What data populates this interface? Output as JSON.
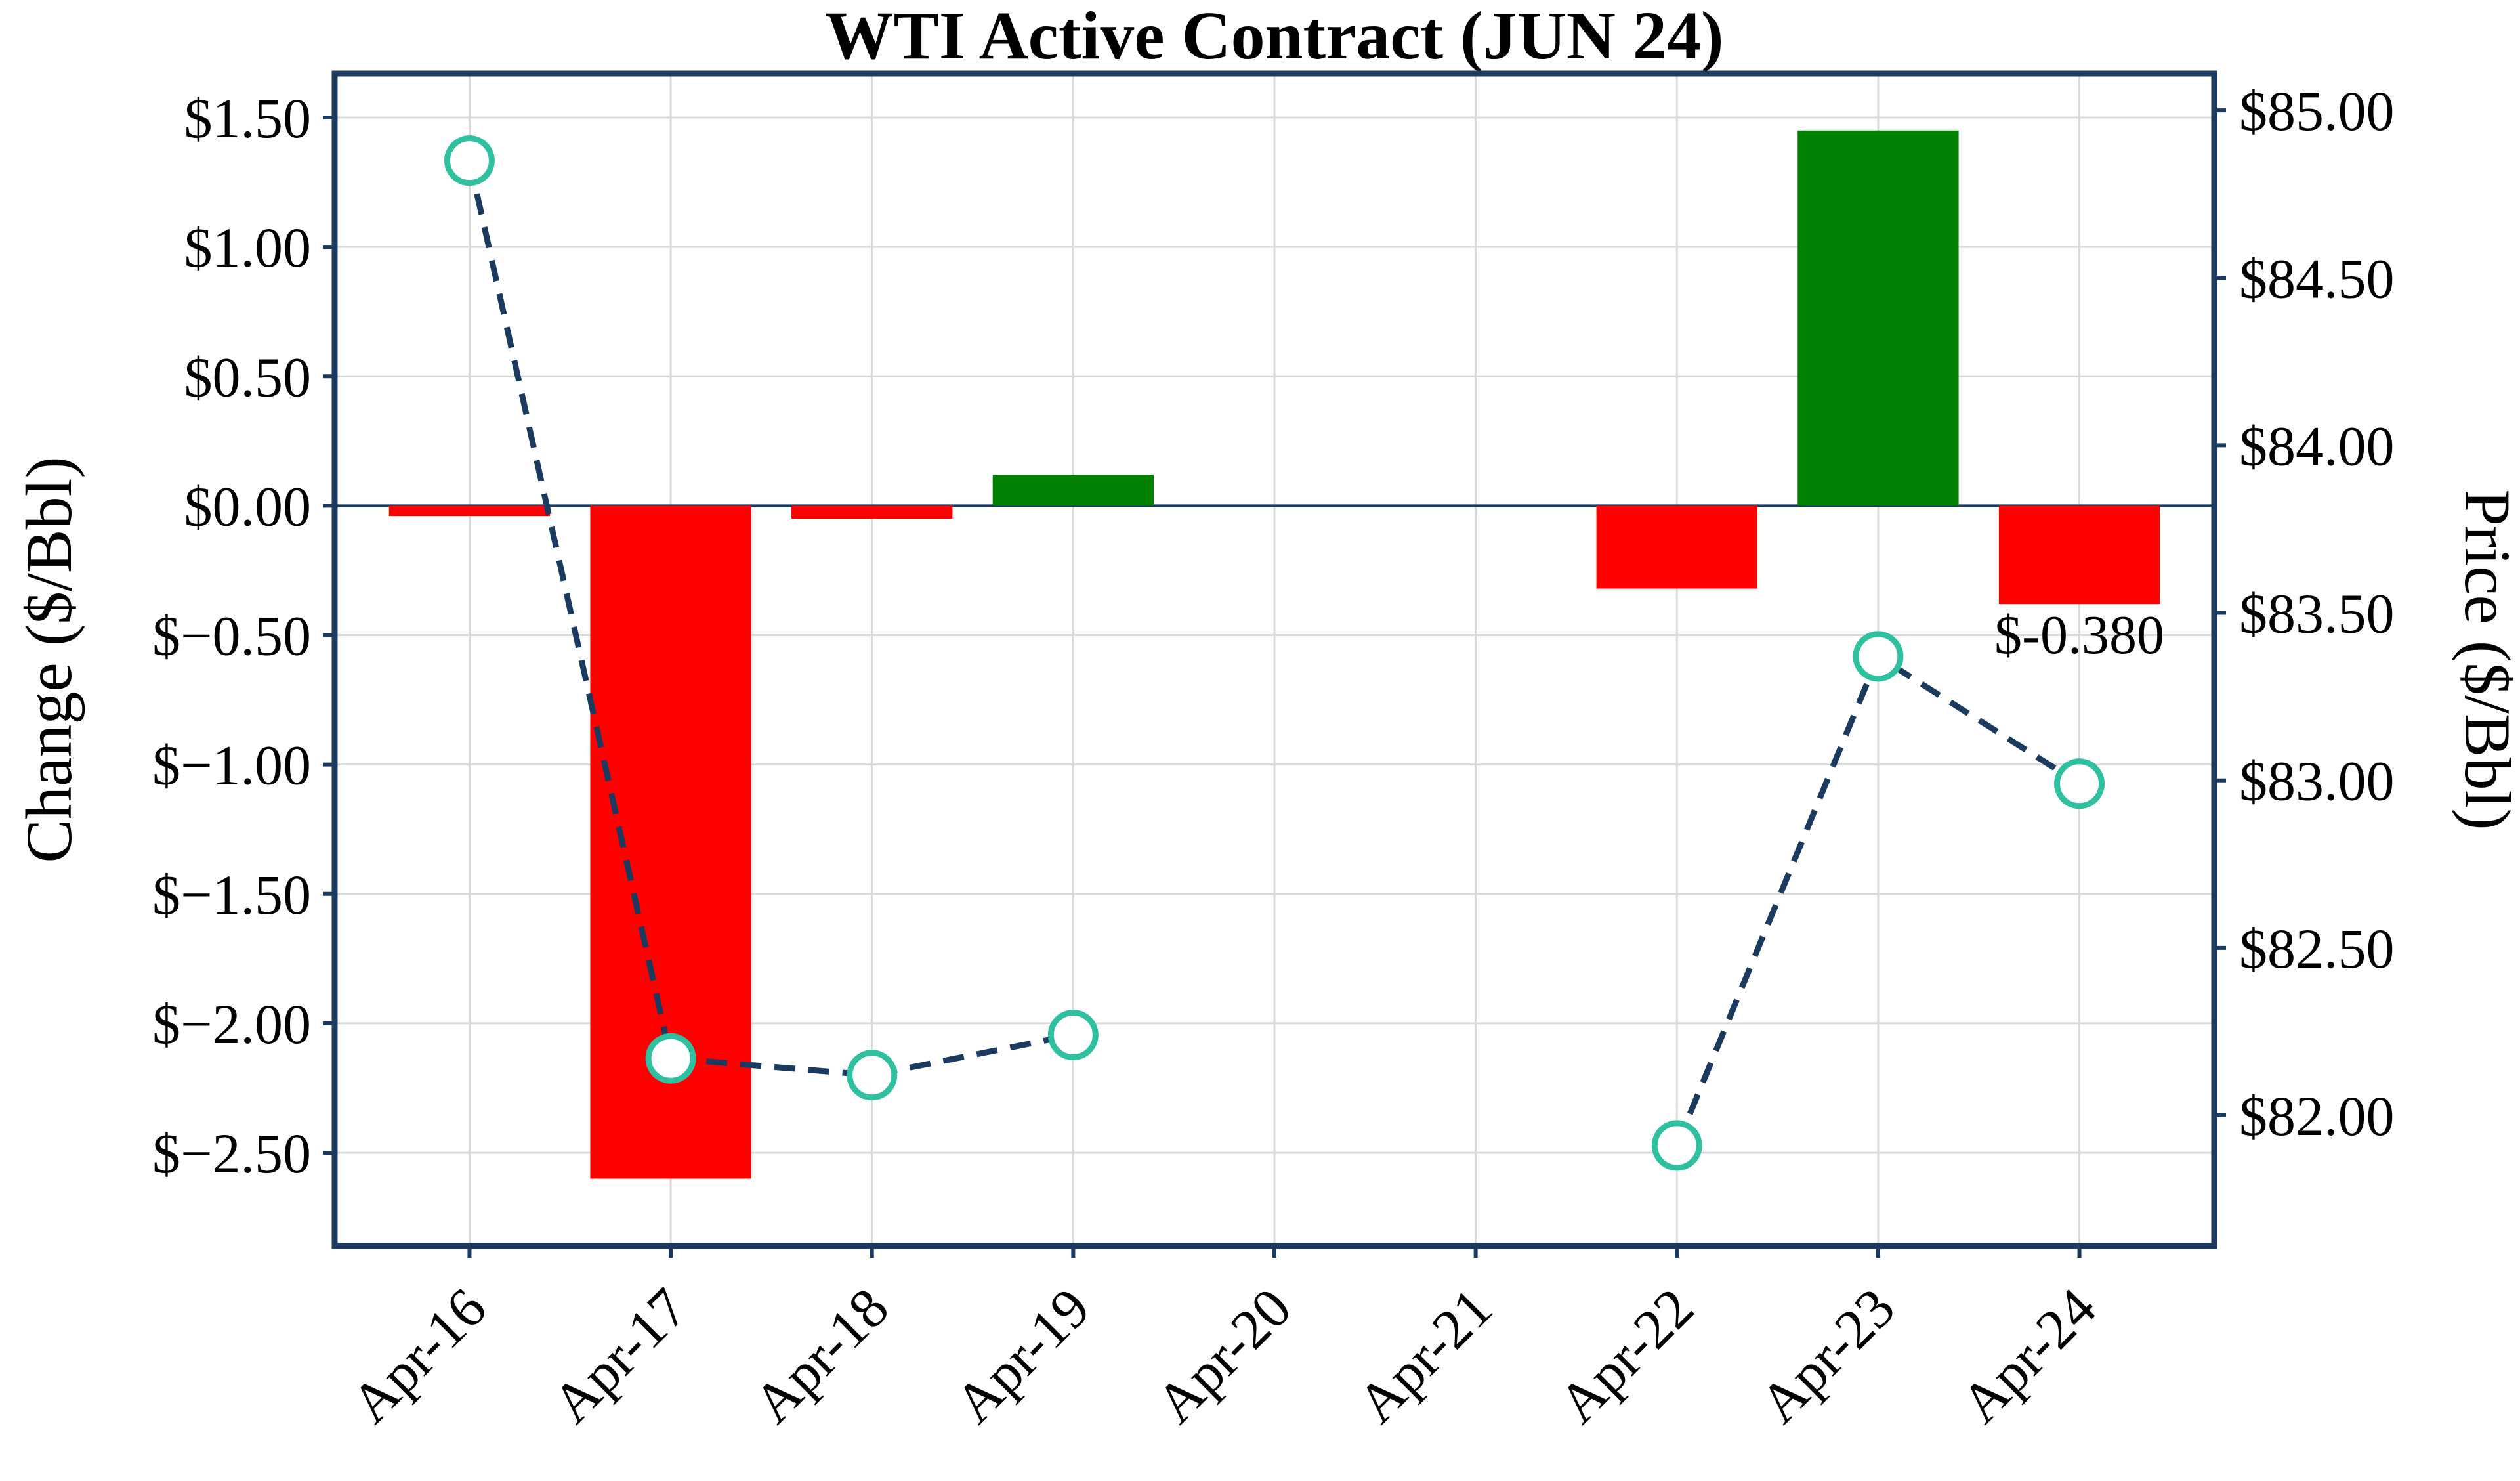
{
  "chart_data": {
    "type": "bar",
    "title": "WTI Active Contract (JUN 24)",
    "left_axis": {
      "label": "Change ($/Bbl)",
      "ticks": [
        1.5,
        1.0,
        0.5,
        0.0,
        -0.5,
        -1.0,
        -1.5,
        -2.0,
        -2.5
      ],
      "tick_labels": [
        "$1.50",
        "$1.00",
        "$0.50",
        "$0.00",
        "$−0.50",
        "$−1.00",
        "$−1.50",
        "$−2.00",
        "$−2.50"
      ],
      "ylim": [
        -2.86,
        1.67
      ]
    },
    "right_axis": {
      "label": "Price ($/Bbl)",
      "ticks": [
        85.0,
        84.5,
        84.0,
        83.5,
        83.0,
        82.5,
        82.0
      ],
      "tick_labels": [
        "$85.00",
        "$84.50",
        "$84.00",
        "$83.50",
        "$83.00",
        "$82.50",
        "$82.00"
      ],
      "ylim": [
        81.61,
        85.11
      ]
    },
    "categories": [
      "Apr-16",
      "Apr-17",
      "Apr-18",
      "Apr-19",
      "Apr-20",
      "Apr-21",
      "Apr-22",
      "Apr-23",
      "Apr-24"
    ],
    "series": [
      {
        "name": "Change",
        "type": "bar",
        "axis": "left",
        "values": [
          -0.04,
          -2.6,
          -0.05,
          0.12,
          null,
          null,
          -0.32,
          1.45,
          -0.38
        ],
        "positive_color": "#008000",
        "negative_color": "#ff0000"
      },
      {
        "name": "Price",
        "type": "line",
        "axis": "right",
        "values": [
          84.85,
          82.17,
          82.12,
          82.24,
          null,
          null,
          81.91,
          83.37,
          82.99
        ],
        "line_color": "#1b3a5f",
        "line_style": "dashed",
        "marker": "circle",
        "marker_edge_color": "#2fc0a0",
        "marker_face_color": "#ffffff"
      }
    ],
    "annotation": {
      "text": "$-0.380",
      "category_index": 8,
      "y_left_baseline": -0.57,
      "dx": 0
    },
    "grid": true,
    "grid_color": "#d9d9d9",
    "spine_color": "#1b3a5f",
    "legend_position": "none"
  }
}
